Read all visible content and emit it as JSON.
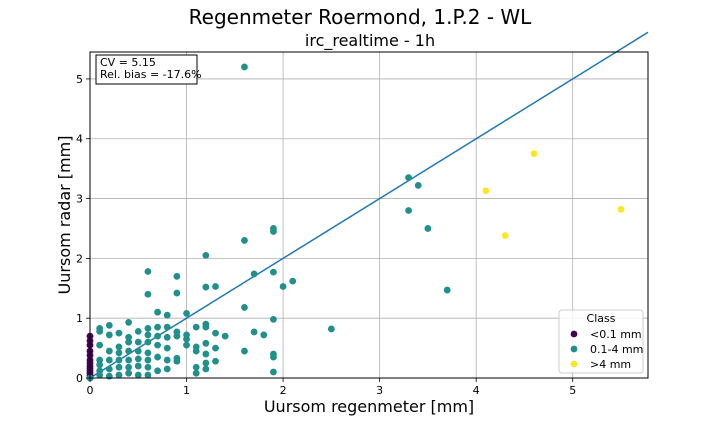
{
  "chart_data": {
    "type": "scatter",
    "title": "Regenmeter Roermond, 1.P.2 - WL",
    "subtitle": "irc_realtime - 1h",
    "xlabel": "Uursom regenmeter [mm]",
    "ylabel": "Uursom radar [mm]",
    "xlim": [
      0,
      5.78
    ],
    "ylim": [
      0,
      5.45
    ],
    "xticks": [
      0,
      1,
      2,
      3,
      4,
      5
    ],
    "yticks": [
      0,
      1,
      2,
      3,
      4,
      5
    ],
    "grid": true,
    "annotation": [
      "CV = 5.15",
      "Rel. bias = -17.6%"
    ],
    "legend": {
      "title": "Class",
      "placement": "bottom-right"
    },
    "trend_line": {
      "x": [
        0,
        5.78
      ],
      "y": [
        0,
        5.78
      ]
    },
    "series": [
      {
        "name": "<0.1 mm",
        "color": "#440154",
        "points": [
          [
            0,
            0
          ],
          [
            0,
            0.04
          ],
          [
            0,
            0.08
          ],
          [
            0,
            0.12
          ],
          [
            0,
            0.16
          ],
          [
            0,
            0.2
          ],
          [
            0,
            0.25
          ],
          [
            0,
            0.3
          ],
          [
            0,
            0.38
          ],
          [
            0,
            0.45
          ],
          [
            0,
            0.55
          ],
          [
            0,
            0.62
          ],
          [
            0,
            0.7
          ]
        ]
      },
      {
        "name": "0.1-4 mm",
        "color": "#21908d",
        "points": [
          [
            0,
            0
          ],
          [
            0.1,
            0.05
          ],
          [
            0.1,
            0.12
          ],
          [
            0.1,
            0.22
          ],
          [
            0.1,
            0.3
          ],
          [
            0.1,
            0.55
          ],
          [
            0.1,
            0.78
          ],
          [
            0.1,
            0.83
          ],
          [
            0.2,
            0.03
          ],
          [
            0.2,
            0.15
          ],
          [
            0.2,
            0.3
          ],
          [
            0.2,
            0.45
          ],
          [
            0.2,
            0.72
          ],
          [
            0.2,
            0.88
          ],
          [
            0.3,
            0.05
          ],
          [
            0.3,
            0.18
          ],
          [
            0.3,
            0.3
          ],
          [
            0.3,
            0.42
          ],
          [
            0.3,
            0.52
          ],
          [
            0.3,
            0.75
          ],
          [
            0.4,
            0.08
          ],
          [
            0.4,
            0.18
          ],
          [
            0.4,
            0.3
          ],
          [
            0.4,
            0.45
          ],
          [
            0.4,
            0.6
          ],
          [
            0.4,
            0.68
          ],
          [
            0.4,
            0.93
          ],
          [
            0.5,
            0.05
          ],
          [
            0.5,
            0.2
          ],
          [
            0.5,
            0.32
          ],
          [
            0.5,
            0.45
          ],
          [
            0.5,
            0.6
          ],
          [
            0.5,
            0.78
          ],
          [
            0.6,
            0.05
          ],
          [
            0.6,
            0.18
          ],
          [
            0.6,
            0.3
          ],
          [
            0.6,
            0.42
          ],
          [
            0.6,
            0.6
          ],
          [
            0.6,
            0.72
          ],
          [
            0.6,
            0.83
          ],
          [
            0.6,
            1.4
          ],
          [
            0.6,
            1.78
          ],
          [
            0.7,
            0.12
          ],
          [
            0.7,
            0.35
          ],
          [
            0.7,
            0.55
          ],
          [
            0.7,
            0.7
          ],
          [
            0.7,
            0.85
          ],
          [
            0.7,
            1.1
          ],
          [
            0.8,
            0.15
          ],
          [
            0.8,
            0.3
          ],
          [
            0.8,
            0.5
          ],
          [
            0.8,
            0.68
          ],
          [
            0.8,
            0.85
          ],
          [
            0.8,
            1.05
          ],
          [
            0.9,
            0.28
          ],
          [
            0.9,
            0.33
          ],
          [
            0.9,
            0.7
          ],
          [
            0.9,
            0.77
          ],
          [
            0.9,
            1.42
          ],
          [
            0.9,
            1.7
          ],
          [
            1.0,
            0.55
          ],
          [
            1.0,
            0.65
          ],
          [
            1.0,
            0.72
          ],
          [
            1.0,
            1.08
          ],
          [
            1.1,
            0.08
          ],
          [
            1.1,
            0.18
          ],
          [
            1.1,
            0.45
          ],
          [
            1.1,
            0.52
          ],
          [
            1.1,
            0.85
          ],
          [
            1.2,
            0.15
          ],
          [
            1.2,
            0.25
          ],
          [
            1.2,
            0.4
          ],
          [
            1.2,
            0.58
          ],
          [
            1.2,
            0.85
          ],
          [
            1.2,
            0.9
          ],
          [
            1.2,
            1.52
          ],
          [
            1.2,
            2.05
          ],
          [
            1.3,
            0.28
          ],
          [
            1.3,
            0.5
          ],
          [
            1.3,
            0.75
          ],
          [
            1.3,
            1.53
          ],
          [
            1.4,
            0.7
          ],
          [
            1.6,
            0.45
          ],
          [
            1.6,
            1.18
          ],
          [
            1.6,
            2.3
          ],
          [
            1.6,
            5.2
          ],
          [
            1.7,
            0.77
          ],
          [
            1.7,
            1.74
          ],
          [
            1.8,
            0.72
          ],
          [
            1.9,
            0.1
          ],
          [
            1.9,
            0.35
          ],
          [
            1.9,
            0.4
          ],
          [
            1.9,
            0.98
          ],
          [
            1.9,
            1.77
          ],
          [
            1.9,
            2.45
          ],
          [
            1.9,
            2.5
          ],
          [
            2.0,
            1.53
          ],
          [
            2.1,
            1.62
          ],
          [
            2.5,
            0.82
          ],
          [
            3.3,
            2.8
          ],
          [
            3.3,
            3.35
          ],
          [
            3.4,
            3.22
          ],
          [
            3.5,
            2.5
          ],
          [
            3.7,
            1.47
          ]
        ]
      },
      {
        "name": ">4 mm",
        "color": "#fde725",
        "points": [
          [
            4.1,
            3.13
          ],
          [
            4.3,
            2.38
          ],
          [
            4.6,
            3.75
          ],
          [
            5.5,
            2.82
          ]
        ]
      }
    ]
  }
}
